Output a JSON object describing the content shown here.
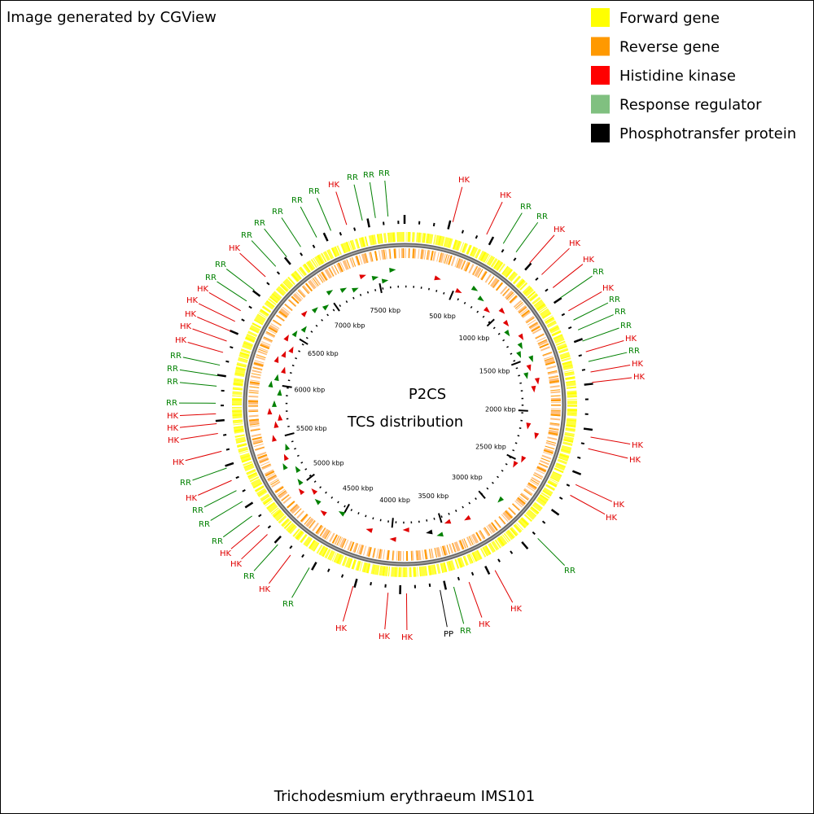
{
  "header": {
    "text": "Image generated by CGView"
  },
  "legend": {
    "items": [
      {
        "label": "Forward gene",
        "color": "#ffff00"
      },
      {
        "label": "Reverse gene",
        "color": "#ff9900"
      },
      {
        "label": "Histidine kinase",
        "color": "#ff0000"
      },
      {
        "label": "Response regulator",
        "color": "#80c080"
      },
      {
        "label": "Phosphotransfer protein",
        "color": "#000000"
      }
    ]
  },
  "center": {
    "title": "P2CS",
    "subtitle": "TCS distribution"
  },
  "footer": {
    "text": "Trichodesmium erythraeum IMS101"
  },
  "scale": {
    "labels": [
      "500 kbp",
      "1000 kbp",
      "1500 kbp",
      "2000 kbp",
      "2500 kbp",
      "3000 kbp",
      "3500 kbp",
      "4000 kbp",
      "4500 kbp",
      "5000 kbp",
      "5500 kbp",
      "6000 kbp",
      "6500 kbp",
      "7000 kbp",
      "7500 kbp"
    ]
  },
  "features": [
    {
      "label": "HK",
      "color": "#e00000"
    },
    {
      "label": "RR",
      "color": "#008000"
    },
    {
      "label": "RR",
      "color": "#008000"
    },
    {
      "label": "RR",
      "color": "#008000"
    },
    {
      "label": "HK",
      "color": "#e00000"
    },
    {
      "label": "HK",
      "color": "#e00000"
    },
    {
      "label": "RR",
      "color": "#008000"
    },
    {
      "label": "RR",
      "color": "#008000"
    },
    {
      "label": "HK",
      "color": "#e00000"
    },
    {
      "label": "HK",
      "color": "#e00000"
    },
    {
      "label": "HK",
      "color": "#e00000"
    },
    {
      "label": "RR",
      "color": "#008000"
    },
    {
      "label": "HK",
      "color": "#e00000"
    },
    {
      "label": "RR",
      "color": "#008000"
    },
    {
      "label": "RR",
      "color": "#008000"
    },
    {
      "label": "RR",
      "color": "#008000"
    },
    {
      "label": "HK",
      "color": "#e00000"
    },
    {
      "label": "RR",
      "color": "#008000"
    },
    {
      "label": "HK",
      "color": "#e00000"
    },
    {
      "label": "HK",
      "color": "#e00000"
    },
    {
      "label": "HK",
      "color": "#e00000"
    },
    {
      "label": "HK",
      "color": "#e00000"
    },
    {
      "label": "HK",
      "color": "#e00000"
    },
    {
      "label": "HK",
      "color": "#e00000"
    },
    {
      "label": "RR",
      "color": "#008000"
    },
    {
      "label": "HK",
      "color": "#e00000"
    },
    {
      "label": "HK",
      "color": "#e00000"
    },
    {
      "label": "RR",
      "color": "#008000"
    },
    {
      "label": "PP",
      "color": "#000000"
    },
    {
      "label": "HK",
      "color": "#e00000"
    },
    {
      "label": "HK",
      "color": "#e00000"
    },
    {
      "label": "HK",
      "color": "#e00000"
    },
    {
      "label": "RR",
      "color": "#008000"
    },
    {
      "label": "HK",
      "color": "#e00000"
    },
    {
      "label": "RR",
      "color": "#008000"
    },
    {
      "label": "HK",
      "color": "#e00000"
    },
    {
      "label": "HK",
      "color": "#e00000"
    },
    {
      "label": "RR",
      "color": "#008000"
    },
    {
      "label": "RR",
      "color": "#008000"
    },
    {
      "label": "RR",
      "color": "#008000"
    },
    {
      "label": "HK",
      "color": "#e00000"
    },
    {
      "label": "RR",
      "color": "#008000"
    },
    {
      "label": "HK",
      "color": "#e00000"
    },
    {
      "label": "HK",
      "color": "#e00000"
    },
    {
      "label": "HK",
      "color": "#e00000"
    },
    {
      "label": "HK",
      "color": "#e00000"
    },
    {
      "label": "RR",
      "color": "#008000"
    },
    {
      "label": "RR",
      "color": "#008000"
    },
    {
      "label": "RR",
      "color": "#008000"
    },
    {
      "label": "RR",
      "color": "#008000"
    },
    {
      "label": "HK",
      "color": "#e00000"
    },
    {
      "label": "HK",
      "color": "#e00000"
    },
    {
      "label": "HK",
      "color": "#e00000"
    },
    {
      "label": "HK",
      "color": "#e00000"
    },
    {
      "label": "HK",
      "color": "#e00000"
    },
    {
      "label": "RR",
      "color": "#008000"
    },
    {
      "label": "RR",
      "color": "#008000"
    },
    {
      "label": "HK",
      "color": "#e00000"
    },
    {
      "label": "RR",
      "color": "#008000"
    },
    {
      "label": "RR",
      "color": "#008000"
    },
    {
      "label": "RR",
      "color": "#008000"
    },
    {
      "label": "RR",
      "color": "#008000"
    },
    {
      "label": "RR",
      "color": "#008000"
    }
  ]
}
